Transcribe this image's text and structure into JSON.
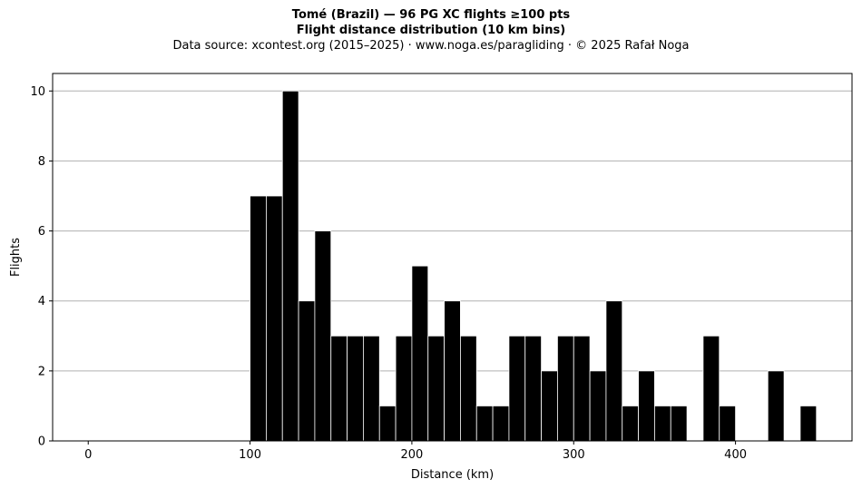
{
  "chart_data": {
    "type": "bar",
    "title": "Tomé (Brazil)  —  96 PG XC flights ≥100 pts",
    "subtitle": "Flight distance distribution (10 km bins)",
    "source": "Data source: xcontest.org (2015–2025)  ·  www.noga.es/paragliding  ·  © 2025 Rafał Noga",
    "xlabel": "Distance (km)",
    "ylabel": "Flights",
    "xlim": [
      -22,
      472
    ],
    "ylim": [
      0,
      10.5
    ],
    "xticks": [
      0,
      100,
      200,
      300,
      400
    ],
    "yticks": [
      0,
      2,
      4,
      6,
      8,
      10
    ],
    "grid": "y",
    "bar_color": "#000000",
    "edge_color": "#ffffff",
    "grid_color": "#b0b0b0",
    "bin_width": 10,
    "bins": [
      {
        "x0": 100,
        "count": 7
      },
      {
        "x0": 110,
        "count": 7
      },
      {
        "x0": 120,
        "count": 10
      },
      {
        "x0": 130,
        "count": 4
      },
      {
        "x0": 140,
        "count": 6
      },
      {
        "x0": 150,
        "count": 3
      },
      {
        "x0": 160,
        "count": 3
      },
      {
        "x0": 170,
        "count": 3
      },
      {
        "x0": 180,
        "count": 1
      },
      {
        "x0": 190,
        "count": 3
      },
      {
        "x0": 200,
        "count": 5
      },
      {
        "x0": 210,
        "count": 3
      },
      {
        "x0": 220,
        "count": 4
      },
      {
        "x0": 230,
        "count": 3
      },
      {
        "x0": 240,
        "count": 1
      },
      {
        "x0": 250,
        "count": 1
      },
      {
        "x0": 260,
        "count": 3
      },
      {
        "x0": 270,
        "count": 3
      },
      {
        "x0": 280,
        "count": 2
      },
      {
        "x0": 290,
        "count": 3
      },
      {
        "x0": 300,
        "count": 3
      },
      {
        "x0": 310,
        "count": 2
      },
      {
        "x0": 320,
        "count": 4
      },
      {
        "x0": 330,
        "count": 1
      },
      {
        "x0": 340,
        "count": 2
      },
      {
        "x0": 350,
        "count": 1
      },
      {
        "x0": 360,
        "count": 1
      },
      {
        "x0": 370,
        "count": 0
      },
      {
        "x0": 380,
        "count": 3
      },
      {
        "x0": 390,
        "count": 1
      },
      {
        "x0": 400,
        "count": 0
      },
      {
        "x0": 410,
        "count": 0
      },
      {
        "x0": 420,
        "count": 2
      },
      {
        "x0": 430,
        "count": 0
      },
      {
        "x0": 440,
        "count": 1
      }
    ]
  }
}
